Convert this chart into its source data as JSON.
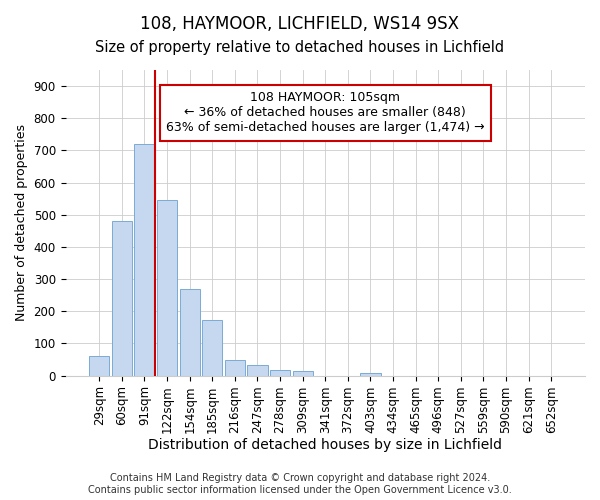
{
  "title1": "108, HAYMOOR, LICHFIELD, WS14 9SX",
  "title2": "Size of property relative to detached houses in Lichfield",
  "xlabel": "Distribution of detached houses by size in Lichfield",
  "ylabel": "Number of detached properties",
  "categories": [
    "29sqm",
    "60sqm",
    "91sqm",
    "122sqm",
    "154sqm",
    "185sqm",
    "216sqm",
    "247sqm",
    "278sqm",
    "309sqm",
    "341sqm",
    "372sqm",
    "403sqm",
    "434sqm",
    "465sqm",
    "496sqm",
    "527sqm",
    "559sqm",
    "590sqm",
    "621sqm",
    "652sqm"
  ],
  "values": [
    60,
    480,
    720,
    545,
    270,
    173,
    47,
    33,
    17,
    14,
    0,
    0,
    9,
    0,
    0,
    0,
    0,
    0,
    0,
    0,
    0
  ],
  "bar_color": "#c5d8f0",
  "bar_edge_color": "#7aaad4",
  "annotation_box_text": "108 HAYMOOR: 105sqm\n← 36% of detached houses are smaller (848)\n63% of semi-detached houses are larger (1,474) →",
  "annotation_box_color": "#cc0000",
  "vline_color": "#cc0000",
  "vline_x_index": 2,
  "ylim": [
    0,
    950
  ],
  "yticks": [
    0,
    100,
    200,
    300,
    400,
    500,
    600,
    700,
    800,
    900
  ],
  "footer1": "Contains HM Land Registry data © Crown copyright and database right 2024.",
  "footer2": "Contains public sector information licensed under the Open Government Licence v3.0.",
  "bg_color": "#ffffff",
  "plot_bg_color": "#ffffff",
  "grid_color": "#cccccc",
  "title1_fontsize": 12,
  "title2_fontsize": 10.5,
  "xlabel_fontsize": 10,
  "ylabel_fontsize": 9,
  "tick_fontsize": 8.5,
  "footer_fontsize": 7,
  "ann_fontsize": 9
}
